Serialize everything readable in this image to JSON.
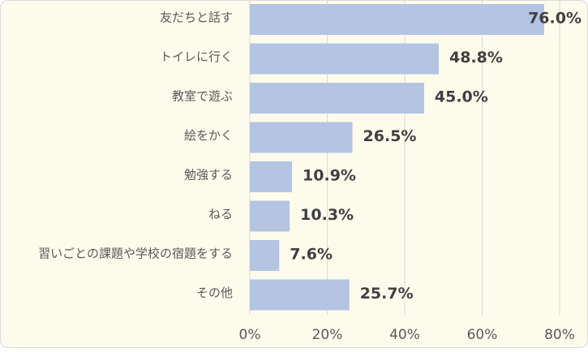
{
  "chart_data": {
    "type": "bar",
    "orientation": "horizontal",
    "categories": [
      "友だちと話す",
      "トイレに行く",
      "教室で遊ぶ",
      "絵をかく",
      "勉強する",
      "ねる",
      "習いごとの課題や学校の宿題をする",
      "その他"
    ],
    "values": [
      76.0,
      48.8,
      45.0,
      26.5,
      10.9,
      10.3,
      7.6,
      25.7
    ],
    "value_labels": [
      "76.0%",
      "48.8%",
      "45.0%",
      "26.5%",
      "10.9%",
      "10.3%",
      "7.6%",
      "25.7%"
    ],
    "x_ticks": [
      0,
      20,
      40,
      60,
      80
    ],
    "x_tick_labels": [
      "0%",
      "20%",
      "40%",
      "60%",
      "80%"
    ],
    "xlim": [
      0,
      80
    ],
    "grid": "vertical",
    "legend": "none",
    "colors": {
      "background": "#fdfcec",
      "bar": "#b4c4e2",
      "grid": "#d9d9d9",
      "border": "#d9d9d9"
    }
  }
}
